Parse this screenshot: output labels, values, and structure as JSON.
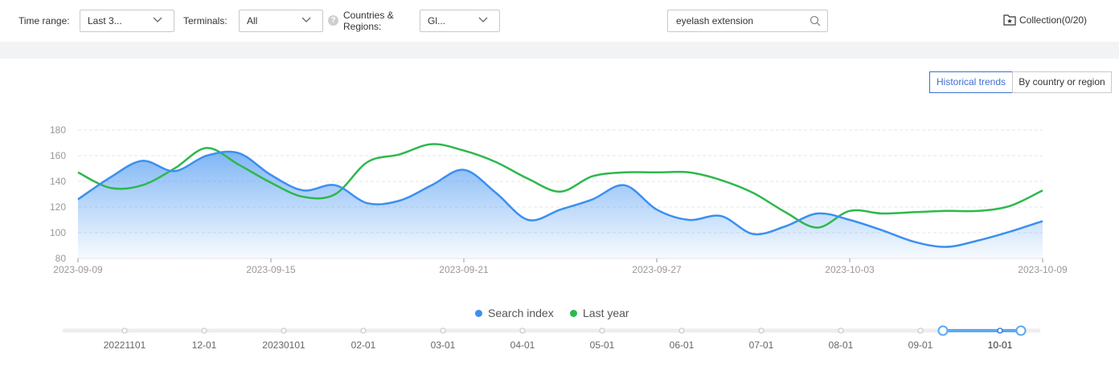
{
  "filters": {
    "time_range_label": "Time range:",
    "time_range_value": "Last 3...",
    "terminals_label": "Terminals:",
    "terminals_value": "All",
    "countries_label_line1": "Countries &",
    "countries_label_line2": "Regions:",
    "countries_value": "Gl...",
    "help_glyph": "?",
    "search_value": "eyelash extension",
    "collection_label": "Collection(0/20)"
  },
  "view_tabs": {
    "historical": "Historical trends",
    "by_country": "By country or region"
  },
  "colors": {
    "search_index": "#3b8ff0",
    "last_year": "#2db84d",
    "grid": "#e6e6e6",
    "axis_text": "#999999",
    "slider_active": "#5aaaf5"
  },
  "chart_data": {
    "type": "line",
    "x": [
      "2023-09-09",
      "2023-09-10",
      "2023-09-11",
      "2023-09-12",
      "2023-09-13",
      "2023-09-14",
      "2023-09-15",
      "2023-09-16",
      "2023-09-17",
      "2023-09-18",
      "2023-09-19",
      "2023-09-20",
      "2023-09-21",
      "2023-09-22",
      "2023-09-23",
      "2023-09-24",
      "2023-09-25",
      "2023-09-26",
      "2023-09-27",
      "2023-09-28",
      "2023-09-29",
      "2023-09-30",
      "2023-10-01",
      "2023-10-02",
      "2023-10-03",
      "2023-10-04",
      "2023-10-05",
      "2023-10-06",
      "2023-10-07",
      "2023-10-08",
      "2023-10-09"
    ],
    "x_tick_labels": [
      "2023-09-09",
      "2023-09-15",
      "2023-09-21",
      "2023-09-27",
      "2023-10-03",
      "2023-10-09"
    ],
    "x_tick_index": [
      0,
      6,
      12,
      18,
      24,
      30
    ],
    "ylim": [
      80,
      180
    ],
    "yticks": [
      80,
      100,
      120,
      140,
      160,
      180
    ],
    "series": [
      {
        "name": "Search index",
        "values": [
          126,
          143,
          156,
          148,
          160,
          162,
          145,
          133,
          137,
          123,
          125,
          137,
          149,
          131,
          110,
          118,
          126,
          137,
          118,
          110,
          113,
          99,
          105,
          115,
          110,
          102,
          93,
          89,
          94,
          101,
          109
        ]
      },
      {
        "name": "Last year",
        "values": [
          147,
          135,
          137,
          150,
          166,
          153,
          139,
          128,
          130,
          155,
          161,
          169,
          164,
          155,
          142,
          132,
          144,
          147,
          147,
          147,
          141,
          131,
          116,
          104,
          117,
          115,
          116,
          117,
          117,
          121,
          133
        ]
      }
    ],
    "legend_position": "bottom"
  },
  "timeline": {
    "labels": [
      "20221101",
      "12-01",
      "20230101",
      "02-01",
      "03-01",
      "04-01",
      "05-01",
      "06-01",
      "07-01",
      "08-01",
      "09-01",
      "10-01"
    ],
    "active_index": 11
  }
}
